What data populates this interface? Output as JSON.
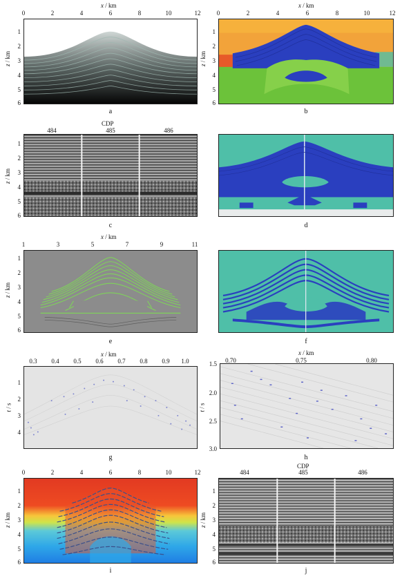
{
  "figure": {
    "panels": [
      {
        "id": "a",
        "caption": "a",
        "xlabel_var": "x",
        "xlabel_unit": " / km",
        "ylabel_var": "z",
        "ylabel_unit": " / km",
        "xticks": [
          "0",
          "2",
          "4",
          "6",
          "8",
          "10",
          "12"
        ],
        "yticks": [
          "1",
          "2",
          "3",
          "4",
          "5",
          "6"
        ]
      },
      {
        "id": "b",
        "caption": "b",
        "xlabel_var": "x",
        "xlabel_unit": " / km",
        "ylabel_var": "z",
        "ylabel_unit": " / km",
        "xticks": [
          "0",
          "2",
          "4",
          "6",
          "8",
          "10",
          "12"
        ],
        "yticks": [
          "1",
          "2",
          "3",
          "4",
          "5",
          "6"
        ]
      },
      {
        "id": "c",
        "caption": "c",
        "xlabel_var": "",
        "xlabel_unit": "CDP",
        "ylabel_var": "z",
        "ylabel_unit": " / km",
        "xticks": [
          "484",
          "485",
          "486"
        ],
        "yticks": [
          "1",
          "2",
          "3",
          "4",
          "5",
          "6"
        ]
      },
      {
        "id": "d",
        "caption": "d"
      },
      {
        "id": "e",
        "caption": "e",
        "xlabel_var": "x",
        "xlabel_unit": " / km",
        "ylabel_var": "z",
        "ylabel_unit": " / km",
        "xticks": [
          "1",
          "3",
          "5",
          "7",
          "9",
          "11"
        ],
        "yticks": [
          "1",
          "2",
          "3",
          "4",
          "5",
          "6"
        ]
      },
      {
        "id": "f",
        "caption": "f"
      },
      {
        "id": "g",
        "caption": "g",
        "xlabel_var": "x",
        "xlabel_unit": " / km",
        "ylabel_var": "t",
        "ylabel_unit": " / s",
        "xticks": [
          "0.3",
          "0.4",
          "0.5",
          "0.6",
          "0.7",
          "0.8",
          "0.9",
          "1.0"
        ],
        "yticks": [
          "1",
          "2",
          "3",
          "4"
        ]
      },
      {
        "id": "h",
        "caption": "h",
        "xlabel_var": "x",
        "xlabel_unit": " / km",
        "ylabel_var": "t",
        "ylabel_unit": " / s",
        "xticks": [
          "0.70",
          "0.75",
          "0.80"
        ],
        "yticks": [
          "1.5",
          "2.0",
          "2.5",
          "3.0"
        ]
      },
      {
        "id": "i",
        "caption": "i",
        "xlabel_var": "",
        "xlabel_unit": "",
        "ylabel_var": "z",
        "ylabel_unit": " / km",
        "xticks": [
          "0",
          "2",
          "4",
          "6",
          "8",
          "10",
          "12"
        ],
        "yticks": [
          "1",
          "2",
          "3",
          "4",
          "5",
          "6"
        ]
      },
      {
        "id": "j",
        "caption": "j",
        "xlabel_var": "",
        "xlabel_unit": "CDP",
        "ylabel_var": "z",
        "ylabel_unit": " / km",
        "xticks": [
          "484",
          "485",
          "486"
        ],
        "yticks": [
          "1",
          "2",
          "3",
          "4",
          "5",
          "6"
        ]
      }
    ]
  },
  "colors": {
    "blue": "#2a3fbf",
    "teal": "#4fbfa8",
    "green": "#6cc23a",
    "orange": "#f2a33a",
    "red": "#e23a22"
  }
}
